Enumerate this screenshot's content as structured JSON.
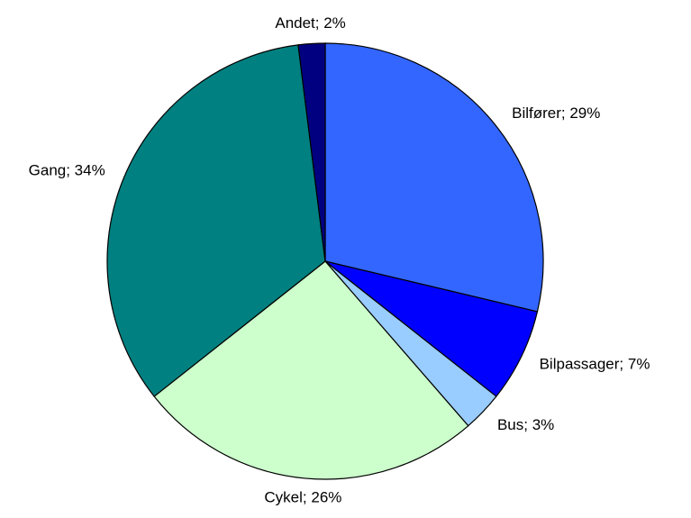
{
  "chart_data": {
    "type": "pie",
    "value_labels": [
      "Bilfører; 29%",
      "Bilpassager; 7%",
      "Bus; 3%",
      "Cykel; 26%",
      "Gang; 34%",
      "Andet; 2%"
    ],
    "values": [
      29,
      7,
      3,
      26,
      34,
      2
    ],
    "colors": [
      "#3366ff",
      "#0000ff",
      "#99ccff",
      "#ccffcc",
      "#008080",
      "#000080"
    ]
  }
}
